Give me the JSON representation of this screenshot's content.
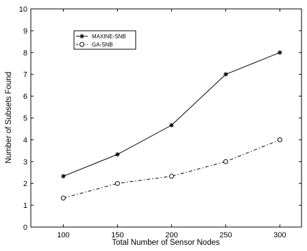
{
  "chart_data": {
    "type": "line",
    "x": [
      100,
      150,
      200,
      250,
      300
    ],
    "series": [
      {
        "name": "MAXINE-SNB",
        "values": [
          2.33,
          3.33,
          4.67,
          7.0,
          8.0
        ],
        "marker": "asterisk",
        "line_style": "solid",
        "color": "#000000"
      },
      {
        "name": "GA-SNB",
        "values": [
          1.33,
          2.0,
          2.33,
          3.0,
          4.0
        ],
        "marker": "circle",
        "line_style": "dash-dot",
        "color": "#000000"
      }
    ],
    "xlabel": "Total Number of Sensor Nodes",
    "ylabel": "Number of Subsets Found",
    "xlim": [
      70,
      320
    ],
    "ylim": [
      0,
      10
    ],
    "xticks": [
      100,
      150,
      200,
      250,
      300
    ],
    "yticks": [
      0,
      1,
      2,
      3,
      4,
      5,
      6,
      7,
      8,
      9,
      10
    ],
    "grid": false,
    "legend_position": "top-left"
  }
}
